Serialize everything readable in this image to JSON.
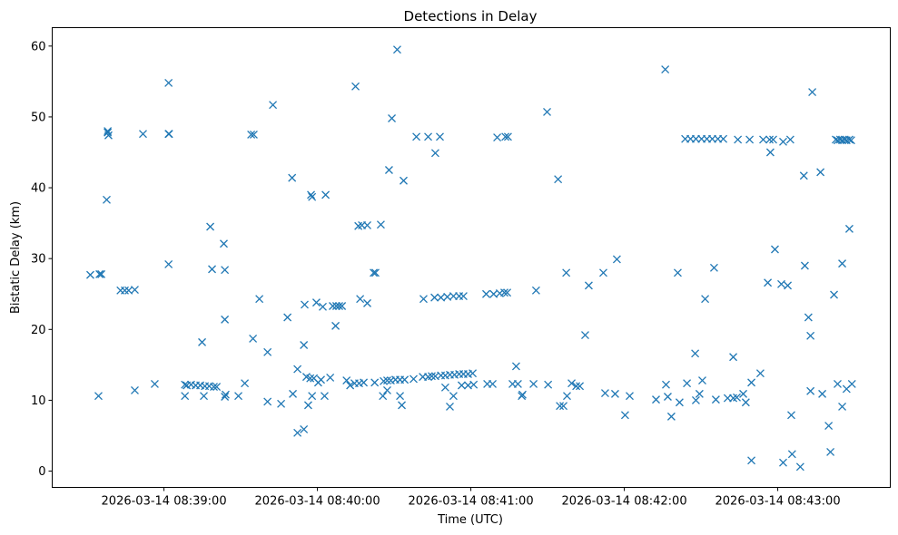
{
  "chart_data": {
    "type": "scatter",
    "title": "Detections in Delay",
    "xlabel": "Time (UTC)",
    "ylabel": "Bistatic Delay (km)",
    "x_unit": "seconds relative to 2026-03-14 08:39:00",
    "xlim": [
      -43.7,
      284
    ],
    "ylim": [
      -2.3,
      62.6
    ],
    "grid": false,
    "marker": "x",
    "color": "#1f77b4",
    "x_ticks": [
      {
        "value": 0,
        "label": "2026-03-14 08:39:00"
      },
      {
        "value": 60,
        "label": "2026-03-14 08:40:00"
      },
      {
        "value": 120,
        "label": "2026-03-14 08:41:00"
      },
      {
        "value": 180,
        "label": "2026-03-14 08:42:00"
      },
      {
        "value": 240,
        "label": "2026-03-14 08:43:00"
      }
    ],
    "y_ticks": [
      {
        "value": 0,
        "label": "0"
      },
      {
        "value": 10,
        "label": "10"
      },
      {
        "value": 20,
        "label": "20"
      },
      {
        "value": 30,
        "label": "30"
      },
      {
        "value": 40,
        "label": "40"
      },
      {
        "value": 50,
        "label": "50"
      },
      {
        "value": 60,
        "label": "60"
      }
    ],
    "points": [
      [
        -28.8,
        27.7
      ],
      [
        -25.2,
        27.8
      ],
      [
        -24.5,
        27.8
      ],
      [
        -25.6,
        10.6
      ],
      [
        -22.0,
        47.8
      ],
      [
        -21.7,
        47.4
      ],
      [
        -22.0,
        48.0
      ],
      [
        -22.4,
        38.3
      ],
      [
        -17.0,
        25.5
      ],
      [
        -15.3,
        25.5
      ],
      [
        -13.8,
        25.5
      ],
      [
        -11.4,
        25.6
      ],
      [
        -11.4,
        11.4
      ],
      [
        -8.2,
        47.6
      ],
      [
        -3.6,
        12.3
      ],
      [
        1.8,
        54.8
      ],
      [
        1.8,
        47.6
      ],
      [
        2.0,
        47.6
      ],
      [
        1.8,
        29.2
      ],
      [
        8.2,
        10.6
      ],
      [
        8.2,
        12.2
      ],
      [
        8.9,
        12.1
      ],
      [
        10.6,
        12.2
      ],
      [
        12.4,
        12.1
      ],
      [
        14.2,
        12.1
      ],
      [
        16.0,
        12.0
      ],
      [
        17.7,
        12.0
      ],
      [
        19.5,
        11.9
      ],
      [
        14.9,
        18.2
      ],
      [
        15.6,
        10.6
      ],
      [
        18.1,
        34.5
      ],
      [
        18.8,
        28.5
      ],
      [
        20.6,
        11.9
      ],
      [
        23.4,
        32.1
      ],
      [
        23.8,
        28.4
      ],
      [
        23.8,
        21.4
      ],
      [
        23.8,
        10.5
      ],
      [
        24.1,
        10.8
      ],
      [
        29.1,
        10.6
      ],
      [
        31.6,
        12.4
      ],
      [
        34.1,
        47.5
      ],
      [
        35.1,
        47.5
      ],
      [
        34.8,
        18.7
      ],
      [
        37.3,
        24.3
      ],
      [
        40.5,
        9.8
      ],
      [
        42.6,
        51.7
      ],
      [
        40.5,
        16.8
      ],
      [
        45.8,
        9.5
      ],
      [
        48.3,
        21.7
      ],
      [
        50.1,
        41.4
      ],
      [
        50.4,
        10.9
      ],
      [
        52.2,
        14.4
      ],
      [
        52.2,
        5.4
      ],
      [
        54.7,
        5.9
      ],
      [
        54.7,
        17.8
      ],
      [
        55.0,
        23.5
      ],
      [
        55.7,
        13.3
      ],
      [
        57.2,
        13.1
      ],
      [
        58.6,
        13.1
      ],
      [
        56.4,
        9.3
      ],
      [
        57.5,
        39.0
      ],
      [
        57.9,
        38.7
      ],
      [
        57.9,
        10.6
      ],
      [
        59.6,
        23.8
      ],
      [
        60.3,
        12.5
      ],
      [
        61.4,
        12.9
      ],
      [
        62.1,
        23.2
      ],
      [
        62.8,
        10.6
      ],
      [
        63.2,
        39.0
      ],
      [
        65.0,
        13.2
      ],
      [
        66.0,
        23.3
      ],
      [
        67.4,
        23.3
      ],
      [
        68.5,
        23.3
      ],
      [
        69.6,
        23.3
      ],
      [
        67.1,
        20.5
      ],
      [
        71.4,
        12.8
      ],
      [
        72.8,
        12.1
      ],
      [
        74.5,
        12.4
      ],
      [
        76.3,
        12.4
      ],
      [
        78.1,
        12.5
      ],
      [
        74.9,
        54.3
      ],
      [
        76.0,
        34.6
      ],
      [
        77.4,
        34.7
      ],
      [
        79.5,
        34.7
      ],
      [
        76.7,
        24.3
      ],
      [
        79.5,
        23.7
      ],
      [
        82.0,
        28.0
      ],
      [
        82.7,
        28.0
      ],
      [
        82.4,
        12.5
      ],
      [
        84.8,
        34.8
      ],
      [
        85.6,
        10.6
      ],
      [
        85.9,
        12.7
      ],
      [
        87.3,
        12.8
      ],
      [
        88.7,
        12.8
      ],
      [
        90.5,
        12.9
      ],
      [
        92.3,
        12.9
      ],
      [
        94.1,
        12.9
      ],
      [
        87.3,
        11.4
      ],
      [
        88.0,
        42.5
      ],
      [
        89.1,
        49.8
      ],
      [
        91.2,
        59.5
      ],
      [
        92.3,
        10.6
      ],
      [
        93.0,
        9.3
      ],
      [
        93.7,
        41.0
      ],
      [
        97.6,
        13.0
      ],
      [
        98.7,
        47.2
      ],
      [
        101.5,
        24.3
      ],
      [
        103.3,
        47.2
      ],
      [
        105.8,
        24.5
      ],
      [
        108.3,
        24.5
      ],
      [
        110.8,
        24.6
      ],
      [
        113.2,
        24.7
      ],
      [
        115.4,
        24.7
      ],
      [
        117.1,
        24.7
      ],
      [
        106.1,
        44.9
      ],
      [
        107.9,
        47.2
      ],
      [
        101.2,
        13.3
      ],
      [
        103.3,
        13.3
      ],
      [
        104.7,
        13.4
      ],
      [
        106.1,
        13.4
      ],
      [
        108.3,
        13.5
      ],
      [
        110.0,
        13.5
      ],
      [
        111.8,
        13.6
      ],
      [
        113.6,
        13.6
      ],
      [
        115.4,
        13.7
      ],
      [
        117.1,
        13.7
      ],
      [
        118.9,
        13.7
      ],
      [
        120.7,
        13.8
      ],
      [
        110.0,
        11.8
      ],
      [
        111.8,
        9.1
      ],
      [
        113.2,
        10.6
      ],
      [
        116.4,
        12.1
      ],
      [
        118.9,
        12.1
      ],
      [
        121.1,
        12.2
      ],
      [
        126.0,
        25.0
      ],
      [
        128.9,
        25.0
      ],
      [
        131.3,
        25.1
      ],
      [
        133.1,
        25.2
      ],
      [
        134.2,
        25.2
      ],
      [
        126.4,
        12.3
      ],
      [
        128.5,
        12.3
      ],
      [
        130.3,
        47.1
      ],
      [
        133.5,
        47.2
      ],
      [
        134.5,
        47.2
      ],
      [
        136.3,
        12.3
      ],
      [
        138.4,
        12.3
      ],
      [
        137.7,
        14.8
      ],
      [
        139.9,
        10.6
      ],
      [
        140.2,
        10.8
      ],
      [
        144.5,
        12.3
      ],
      [
        145.5,
        25.5
      ],
      [
        149.8,
        50.7
      ],
      [
        150.2,
        12.2
      ],
      [
        154.1,
        41.2
      ],
      [
        154.8,
        9.2
      ],
      [
        156.2,
        9.2
      ],
      [
        157.3,
        28.0
      ],
      [
        157.6,
        10.6
      ],
      [
        159.4,
        12.4
      ],
      [
        161.2,
        12.0
      ],
      [
        162.6,
        12.0
      ],
      [
        164.7,
        19.2
      ],
      [
        166.1,
        26.2
      ],
      [
        171.8,
        28.0
      ],
      [
        172.5,
        11.0
      ],
      [
        176.4,
        10.9
      ],
      [
        177.1,
        29.9
      ],
      [
        180.3,
        7.9
      ],
      [
        182.1,
        10.6
      ],
      [
        192.4,
        10.1
      ],
      [
        196.0,
        56.7
      ],
      [
        196.3,
        12.2
      ],
      [
        197.0,
        10.5
      ],
      [
        198.4,
        7.7
      ],
      [
        200.9,
        28.0
      ],
      [
        201.6,
        9.7
      ],
      [
        203.8,
        46.9
      ],
      [
        205.9,
        46.9
      ],
      [
        208.0,
        46.9
      ],
      [
        210.2,
        46.9
      ],
      [
        212.3,
        46.9
      ],
      [
        214.4,
        46.9
      ],
      [
        216.6,
        46.9
      ],
      [
        218.7,
        46.9
      ],
      [
        204.5,
        12.4
      ],
      [
        207.7,
        16.6
      ],
      [
        208.0,
        10.0
      ],
      [
        209.4,
        10.9
      ],
      [
        210.5,
        12.8
      ],
      [
        211.6,
        24.3
      ],
      [
        215.1,
        28.7
      ],
      [
        215.8,
        10.1
      ],
      [
        220.4,
        10.3
      ],
      [
        222.6,
        10.3
      ],
      [
        224.0,
        10.4
      ],
      [
        222.6,
        16.1
      ],
      [
        224.4,
        46.8
      ],
      [
        226.5,
        10.9
      ],
      [
        227.5,
        9.7
      ],
      [
        229.0,
        46.8
      ],
      [
        229.7,
        12.5
      ],
      [
        229.7,
        1.5
      ],
      [
        233.2,
        13.8
      ],
      [
        234.3,
        46.8
      ],
      [
        236.8,
        46.8
      ],
      [
        238.2,
        46.8
      ],
      [
        236.1,
        26.6
      ],
      [
        237.1,
        45.0
      ],
      [
        238.9,
        31.3
      ],
      [
        241.4,
        26.4
      ],
      [
        242.1,
        46.5
      ],
      [
        242.1,
        1.2
      ],
      [
        243.9,
        26.2
      ],
      [
        244.9,
        46.8
      ],
      [
        245.3,
        7.9
      ],
      [
        245.6,
        2.4
      ],
      [
        248.8,
        0.6
      ],
      [
        250.2,
        41.7
      ],
      [
        250.6,
        29.0
      ],
      [
        252.0,
        21.7
      ],
      [
        252.8,
        19.1
      ],
      [
        252.8,
        11.3
      ],
      [
        253.5,
        53.5
      ],
      [
        256.7,
        42.2
      ],
      [
        257.4,
        10.9
      ],
      [
        259.9,
        6.4
      ],
      [
        260.6,
        2.7
      ],
      [
        262.0,
        24.9
      ],
      [
        262.7,
        46.8
      ],
      [
        263.4,
        46.7
      ],
      [
        264.4,
        46.8
      ],
      [
        265.2,
        46.7
      ],
      [
        266.2,
        46.8
      ],
      [
        266.9,
        46.7
      ],
      [
        268.0,
        46.8
      ],
      [
        268.7,
        46.7
      ],
      [
        263.4,
        12.3
      ],
      [
        265.2,
        29.3
      ],
      [
        265.2,
        9.1
      ],
      [
        266.9,
        11.6
      ],
      [
        268.0,
        34.2
      ],
      [
        269.0,
        12.3
      ]
    ]
  }
}
